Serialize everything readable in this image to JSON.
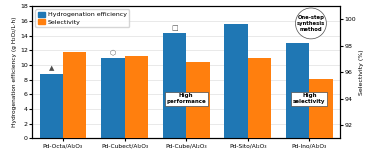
{
  "chart_data": {
    "type": "bar",
    "categories": [
      "Pd-Octa/Al₂O₃",
      "Pd-Cubect/Al₂O₃",
      "Pd-Cube/Al₂O₃",
      "Pd-Sito/Al₂O₃",
      "Pd-Ino/Al₂O₃"
    ],
    "series": [
      {
        "name": "Hydrogenation efficiency",
        "values": [
          8.8,
          11.0,
          14.3,
          15.6,
          13.0
        ]
      },
      {
        "name": "Selectivity",
        "values": [
          97.5,
          97.2,
          96.8,
          97.1,
          95.5
        ],
        "axis": "y2"
      }
    ],
    "ylabel": "Hydrogenation efficiency (g H₂O₂/L·h)",
    "y2label": "Selectivity (%)",
    "ylim": [
      0,
      18
    ],
    "yticks": [
      0,
      2,
      4,
      6,
      8,
      10,
      12,
      14,
      16,
      18
    ],
    "y2lim": [
      91,
      101
    ],
    "y2ticks": [
      92,
      94,
      96,
      98,
      100
    ],
    "grid": true,
    "legend": "upper left",
    "annotations": [
      {
        "text": "▲",
        "category": "Pd-Octa/Al₂O₃"
      },
      {
        "text": "⬡",
        "category": "Pd-Cubect/Al₂O₃"
      },
      {
        "text": "□",
        "category": "Pd-Cube/Al₂O₃"
      },
      {
        "text": "High\nperformance",
        "category": "Pd-Cube/Al₂O₃"
      },
      {
        "text": "High\nselectivity",
        "category": "Pd-Ino/Al₂O₃"
      },
      {
        "text": "One-step\nsynthesis\nmethod"
      }
    ]
  }
}
